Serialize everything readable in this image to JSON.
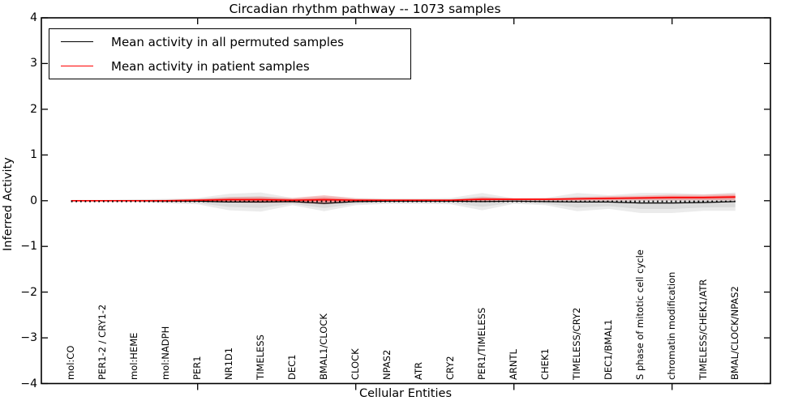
{
  "title": "Circadian rhythm pathway -- 1073 samples",
  "legend": {
    "items": [
      {
        "label": "Mean activity in all permuted samples",
        "color": "#000000"
      },
      {
        "label": "Mean activity in patient samples",
        "color": "#ff0000"
      }
    ]
  },
  "chart_data": {
    "type": "line",
    "title": "Circadian rhythm pathway -- 1073 samples",
    "xlabel": "Cellular Entities",
    "ylabel": "Inferred Activity",
    "ylim": [
      -4,
      4
    ],
    "yticks": [
      4,
      3,
      2,
      1,
      0,
      -1,
      -2,
      -3,
      -4
    ],
    "x_major_ticks": [
      5,
      10,
      15,
      20
    ],
    "grid": false,
    "legend_position": "upper left",
    "categories": [
      "mol:CO",
      "PER1-2 / CRY1-2",
      "mol:HEME",
      "mol:NADPH",
      "PER1",
      "NR1D1",
      "TIMELESS",
      "DEC1",
      "BMAL1/CLOCK",
      "CLOCK",
      "NPAS2",
      "ATR",
      "CRY2",
      "PER1/TIMELESS",
      "ARNTL",
      "CHEK1",
      "TIMELESS/CRY2",
      "DEC1/BMAL1",
      "S phase of mitotic cell cycle",
      "chromatin modification",
      "TIMELESS/CHEK1/ATR",
      "BMAL/CLOCK/NPAS2"
    ],
    "series": [
      {
        "name": "Mean activity in all permuted samples",
        "color": "#000000",
        "line_style": "solid",
        "values": [
          0,
          0,
          0,
          -0.01,
          -0.01,
          -0.03,
          -0.03,
          -0.02,
          -0.06,
          -0.02,
          -0.01,
          -0.01,
          -0.01,
          -0.02,
          -0.01,
          -0.02,
          -0.03,
          -0.03,
          -0.05,
          -0.05,
          -0.04,
          -0.02
        ],
        "band_half_width": [
          0.02,
          0.02,
          0.03,
          0.05,
          0.07,
          0.18,
          0.21,
          0.08,
          0.17,
          0.08,
          0.06,
          0.06,
          0.07,
          0.19,
          0.06,
          0.08,
          0.2,
          0.15,
          0.22,
          0.22,
          0.18,
          0.2
        ],
        "band_color": "#000000",
        "band_opacity": 0.08
      },
      {
        "name": "Mean activity in patient samples",
        "color": "#ff0000",
        "line_style": "solid",
        "values": [
          0,
          0,
          0,
          0,
          0.01,
          0.02,
          0.02,
          0.01,
          0.02,
          0.01,
          0.01,
          0.01,
          0.01,
          0.03,
          0.03,
          0.03,
          0.04,
          0.05,
          0.06,
          0.07,
          0.07,
          0.08
        ],
        "band_half_width": [
          0.01,
          0.01,
          0.01,
          0.02,
          0.03,
          0.06,
          0.07,
          0.05,
          0.1,
          0.04,
          0.02,
          0.02,
          0.02,
          0.05,
          0.03,
          0.03,
          0.04,
          0.05,
          0.05,
          0.06,
          0.06,
          0.07
        ],
        "band_color": "#ff0000",
        "band_opacity": 0.18
      }
    ],
    "zero_line": {
      "y": 0,
      "style": "dotted",
      "color": "#000000"
    }
  }
}
